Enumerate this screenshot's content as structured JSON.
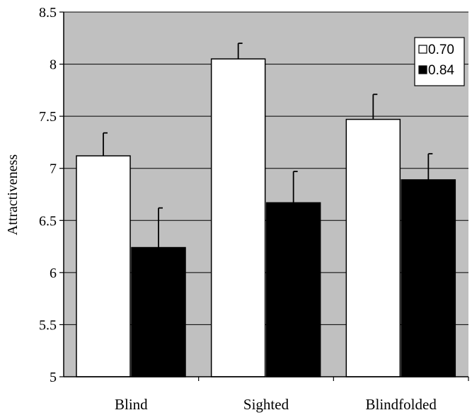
{
  "chart_data": {
    "type": "bar",
    "title": "",
    "xlabel": "",
    "ylabel": "Attractiveness",
    "ylim": [
      5,
      8.5
    ],
    "yticks": [
      "5",
      "5.5",
      "6",
      "6.5",
      "7",
      "7.5",
      "8",
      "8.5"
    ],
    "grid": true,
    "legend_position": "top-right",
    "background_color": "#c0c0c0",
    "categories": [
      "Blind",
      "Sighted",
      "Blindfolded"
    ],
    "series": [
      {
        "name": "0.70",
        "color": "#ffffff",
        "values": [
          7.12,
          8.05,
          7.47
        ],
        "errors": [
          0.22,
          0.15,
          0.24
        ]
      },
      {
        "name": "0.84",
        "color": "#000000",
        "values": [
          6.24,
          6.67,
          6.89
        ],
        "errors": [
          0.38,
          0.3,
          0.25
        ]
      }
    ]
  }
}
